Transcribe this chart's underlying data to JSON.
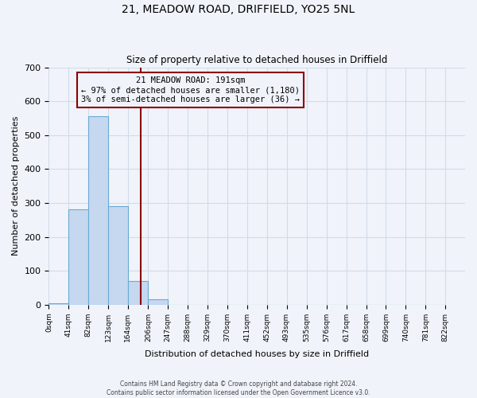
{
  "title": "21, MEADOW ROAD, DRIFFIELD, YO25 5NL",
  "subtitle": "Size of property relative to detached houses in Driffield",
  "xlabel": "Distribution of detached houses by size in Driffield",
  "ylabel": "Number of detached properties",
  "bin_edges": [
    0,
    41,
    82,
    123,
    164,
    206,
    247,
    288,
    329,
    370,
    411,
    452,
    493,
    535,
    576,
    617,
    658,
    699,
    740,
    781,
    822
  ],
  "bin_counts": [
    5,
    280,
    555,
    290,
    70,
    15,
    0,
    0,
    0,
    0,
    0,
    0,
    0,
    0,
    0,
    0,
    0,
    0,
    0,
    0
  ],
  "tick_labels": [
    "0sqm",
    "41sqm",
    "82sqm",
    "123sqm",
    "164sqm",
    "206sqm",
    "247sqm",
    "288sqm",
    "329sqm",
    "370sqm",
    "411sqm",
    "452sqm",
    "493sqm",
    "535sqm",
    "576sqm",
    "617sqm",
    "658sqm",
    "699sqm",
    "740sqm",
    "781sqm",
    "822sqm"
  ],
  "bar_color": "#c5d8f0",
  "bar_edge_color": "#6aaad4",
  "property_line_x": 191,
  "property_line_color": "#8b0000",
  "annotation_box_title": "21 MEADOW ROAD: 191sqm",
  "annotation_line1": "← 97% of detached houses are smaller (1,180)",
  "annotation_line2": "3% of semi-detached houses are larger (36) →",
  "annotation_box_color": "#8b0000",
  "ylim": [
    0,
    700
  ],
  "yticks": [
    0,
    100,
    200,
    300,
    400,
    500,
    600,
    700
  ],
  "grid_color": "#d0dce8",
  "background_color": "#f0f4fa",
  "footnote1": "Contains HM Land Registry data © Crown copyright and database right 2024.",
  "footnote2": "Contains public sector information licensed under the Open Government Licence v3.0."
}
